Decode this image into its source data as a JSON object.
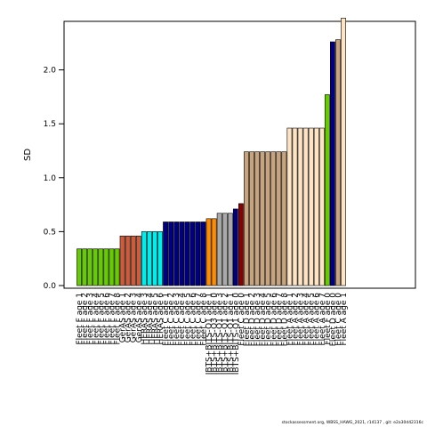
{
  "chart_data": {
    "type": "bar",
    "ylabel": "SD",
    "xlabel": "",
    "ylim": [
      0,
      2.45
    ],
    "yticks": [
      0.0,
      0.5,
      1.0,
      1.5,
      2.0
    ],
    "ytick_labels": [
      "0.0",
      "0.5",
      "1.0",
      "1.5",
      "2.0"
    ],
    "grid": false,
    "bars": [
      {
        "label": "Fleet F age 1",
        "value": 0.34,
        "color": "#66cc00"
      },
      {
        "label": "Fleet F age 2",
        "value": 0.34,
        "color": "#66cc00"
      },
      {
        "label": "Fleet F age 3",
        "value": 0.34,
        "color": "#66cc00"
      },
      {
        "label": "Fleet F age 4",
        "value": 0.34,
        "color": "#66cc00"
      },
      {
        "label": "Fleet F age 5",
        "value": 0.34,
        "color": "#66cc00"
      },
      {
        "label": "Fleet F age 6",
        "value": 0.34,
        "color": "#66cc00"
      },
      {
        "label": "Fleet F age 7",
        "value": 0.34,
        "color": "#66cc00"
      },
      {
        "label": "Fleet F age 8",
        "value": 0.34,
        "color": "#66cc00"
      },
      {
        "label": "GerAS age 1",
        "value": 0.46,
        "color": "#cd5c3c"
      },
      {
        "label": "GerAS age 2",
        "value": 0.46,
        "color": "#cd5c3c"
      },
      {
        "label": "GerAS age 3",
        "value": 0.46,
        "color": "#cd5c3c"
      },
      {
        "label": "GerAS age 4",
        "value": 0.46,
        "color": "#cd5c3c"
      },
      {
        "label": "HERAS age 3",
        "value": 0.5,
        "color": "#00eeee"
      },
      {
        "label": "HERAS age 4",
        "value": 0.5,
        "color": "#00eeee"
      },
      {
        "label": "HERAS age 5",
        "value": 0.5,
        "color": "#00eeee"
      },
      {
        "label": "HERAS age 6",
        "value": 0.5,
        "color": "#00eeee"
      },
      {
        "label": "Fleet C age 1",
        "value": 0.59,
        "color": "#000080"
      },
      {
        "label": "Fleet C age 2",
        "value": 0.59,
        "color": "#000080"
      },
      {
        "label": "Fleet C age 3",
        "value": 0.59,
        "color": "#000080"
      },
      {
        "label": "Fleet C age 4",
        "value": 0.59,
        "color": "#000080"
      },
      {
        "label": "Fleet C age 5",
        "value": 0.59,
        "color": "#000080"
      },
      {
        "label": "Fleet C age 6",
        "value": 0.59,
        "color": "#000080"
      },
      {
        "label": "Fleet C age 7",
        "value": 0.59,
        "color": "#000080"
      },
      {
        "label": "Fleet C age 8",
        "value": 0.59,
        "color": "#000080"
      },
      {
        "label": "IBTS+BITS-Q1 age 1",
        "value": 0.62,
        "color": "#ff8c00"
      },
      {
        "label": "IBTS+BITS-Q3 age 0",
        "value": 0.62,
        "color": "#ff8c00"
      },
      {
        "label": "IBTS+BITS-Q1 age 3",
        "value": 0.67,
        "color": "#a9a9a9"
      },
      {
        "label": "IBTS+BITS-Q1 age 2",
        "value": 0.67,
        "color": "#a9a9a9"
      },
      {
        "label": "IBTS+BITS-Q1 age 1",
        "value": 0.67,
        "color": "#a9a9a9"
      },
      {
        "label": "IBTS+BITS-Q1 age 0",
        "value": 0.71,
        "color": "#000080"
      },
      {
        "label": "Fleet C age 0",
        "value": 0.76,
        "color": "#8b0000"
      },
      {
        "label": "Fleet D age 1",
        "value": 1.24,
        "color": "#c8a47e"
      },
      {
        "label": "Fleet D age 2",
        "value": 1.24,
        "color": "#c8a47e"
      },
      {
        "label": "Fleet D age 3",
        "value": 1.24,
        "color": "#c8a47e"
      },
      {
        "label": "Fleet D age 4",
        "value": 1.24,
        "color": "#c8a47e"
      },
      {
        "label": "Fleet D age 5",
        "value": 1.24,
        "color": "#c8a47e"
      },
      {
        "label": "Fleet D age 6",
        "value": 1.24,
        "color": "#c8a47e"
      },
      {
        "label": "Fleet D age 7",
        "value": 1.24,
        "color": "#c8a47e"
      },
      {
        "label": "Fleet D age 8",
        "value": 1.24,
        "color": "#c8a47e"
      },
      {
        "label": "Fleet A age 1",
        "value": 1.46,
        "color": "#ffe4c4"
      },
      {
        "label": "Fleet A age 2",
        "value": 1.46,
        "color": "#ffe4c4"
      },
      {
        "label": "Fleet A age 3",
        "value": 1.46,
        "color": "#ffe4c4"
      },
      {
        "label": "Fleet A age 4",
        "value": 1.46,
        "color": "#ffe4c4"
      },
      {
        "label": "Fleet A age 5",
        "value": 1.46,
        "color": "#ffe4c4"
      },
      {
        "label": "Fleet A age 6",
        "value": 1.46,
        "color": "#ffe4c4"
      },
      {
        "label": "Fleet A age 7",
        "value": 1.46,
        "color": "#ffe4c4"
      },
      {
        "label": "Fleet F age 0",
        "value": 1.77,
        "color": "#66cc00"
      },
      {
        "label": "Fleet D age 0",
        "value": 2.26,
        "color": "#000080"
      },
      {
        "label": "Fleet C age 0",
        "value": 2.28,
        "color": "#c8a47e"
      },
      {
        "label": "Fleet A age 1",
        "value": 2.48,
        "color": "#ffe4c4"
      }
    ]
  },
  "footer": "stockassessment.org, WBSS_HAWG_2021, r14137 , git: e2a30d42316c"
}
